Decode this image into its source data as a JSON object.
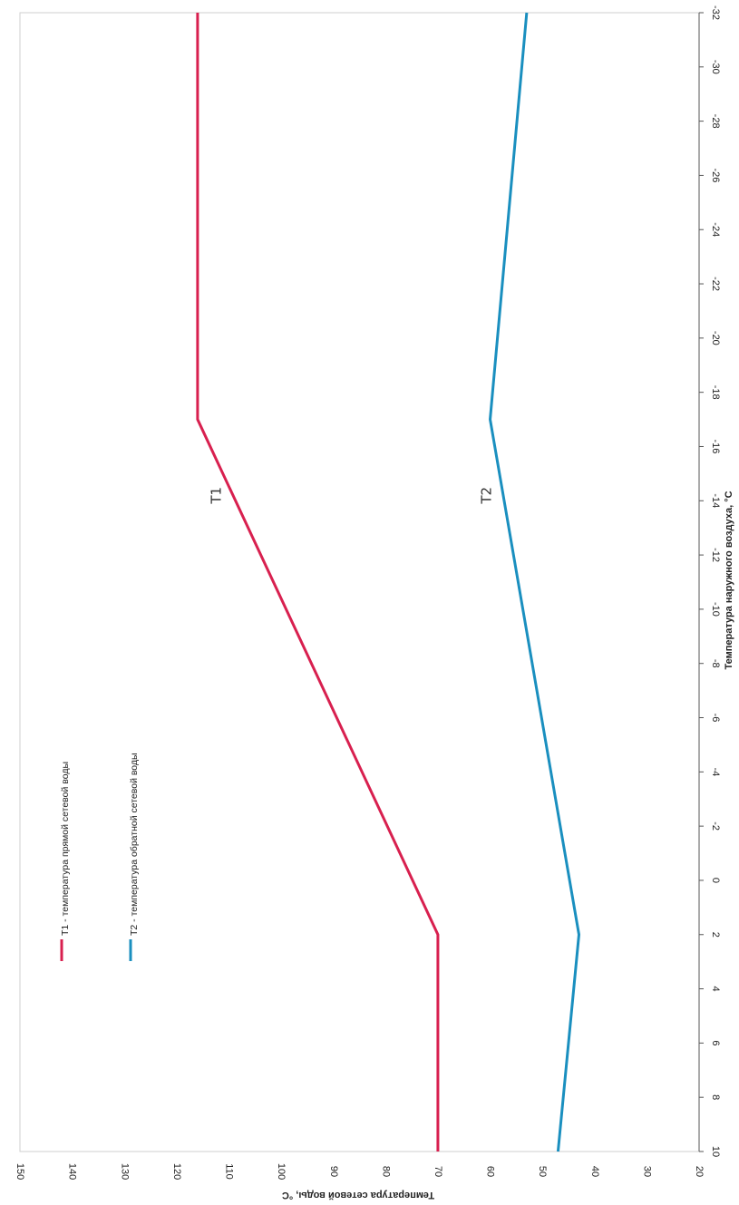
{
  "chart_data": {
    "type": "line",
    "title": "",
    "xlabel": "Температура наружного воздуха, °С",
    "ylabel": "Температура сетевой воды, °С",
    "xlim": [
      10,
      -32
    ],
    "ylim": [
      20,
      150
    ],
    "x_ticks": [
      "10",
      "8",
      "6",
      "4",
      "2",
      "0",
      "-2",
      "-4",
      "-6",
      "-8",
      "-10",
      "-12",
      "-14",
      "-16",
      "-18",
      "-20",
      "-22",
      "-24",
      "-26",
      "-28",
      "-30",
      "-32"
    ],
    "y_ticks": [
      "20",
      "30",
      "40",
      "50",
      "60",
      "70",
      "80",
      "90",
      "100",
      "110",
      "120",
      "130",
      "140",
      "150"
    ],
    "grid": false,
    "legend_position": "top-left",
    "series": [
      {
        "name": "T1 - температура прямой сетевой воды",
        "label": "T1",
        "color": "#d8204f",
        "x": [
          10,
          2,
          -17,
          -32
        ],
        "values": [
          70,
          70,
          116,
          116
        ]
      },
      {
        "name": "T2 - температура обратной сетевой воды",
        "label": "T2",
        "color": "#1a8fbf",
        "x": [
          10,
          2,
          -17,
          -32
        ],
        "values": [
          47,
          43,
          60,
          53
        ]
      }
    ]
  }
}
